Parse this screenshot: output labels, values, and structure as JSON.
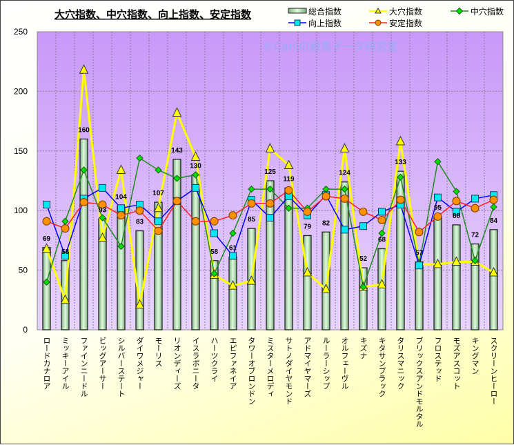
{
  "chart_data": {
    "type": "bar",
    "title": "大穴指数、中穴指数、向上指数、安定指数",
    "watermark": "©Caniの競馬データ研究室",
    "ylim": [
      0,
      250
    ],
    "yticks": [
      0,
      50,
      100,
      150,
      200,
      250
    ],
    "grid": true,
    "legend_position": "top-right",
    "categories": [
      "ロードカナロア",
      "ミッキーアイル",
      "ファインニードル",
      "ビッグアーサー",
      "シルバーステート",
      "ダイワメジャー",
      "モーリス",
      "リオンディーズ",
      "イスラボニータ",
      "ハーツクライ",
      "エピファネイア",
      "タワーオブロンドン",
      "ミスターメロディ",
      "サトノダイヤモンド",
      "アドマイヤマーズ",
      "ルーラーシップ",
      "オルフェーヴル",
      "キズナ",
      "キタサンブラック",
      "タリスマニック",
      "ブリックスアンドモルタル",
      "フロステッド",
      "モズアスコット",
      "キングマン",
      "スクリーンヒーロー"
    ],
    "series": [
      {
        "name": "総合指数",
        "kind": "bar",
        "color": "#c8f0c8",
        "values": [
          69,
          58,
          160,
          93,
          104,
          83,
          107,
          143,
          130,
          58,
          61,
          85,
          125,
          119,
          79,
          82,
          124,
          52,
          68,
          133,
          57,
          95,
          88,
          72,
          84
        ]
      },
      {
        "name": "大穴指数",
        "kind": "line",
        "marker": "triangle",
        "color": "#ffff00",
        "values": [
          68,
          25,
          218,
          77,
          134,
          21,
          102,
          182,
          145,
          46,
          37,
          41,
          152,
          138,
          48,
          34,
          152,
          36,
          38,
          158,
          55,
          55,
          57,
          57,
          48
        ]
      },
      {
        "name": "中穴指数",
        "kind": "line",
        "marker": "diamond",
        "color": "#1e8c1e",
        "fill": "#00e000",
        "values": [
          40,
          91,
          134,
          94,
          70,
          144,
          134,
          127,
          130,
          47,
          81,
          118,
          118,
          102,
          102,
          118,
          118,
          36,
          81,
          128,
          55,
          141,
          116,
          58,
          103
        ]
      },
      {
        "name": "向上指数",
        "kind": "line",
        "marker": "square",
        "color": "#0000ff",
        "fill": "#00e8f0",
        "values": [
          105,
          62,
          110,
          119,
          102,
          105,
          91,
          108,
          119,
          81,
          62,
          109,
          94,
          112,
          96,
          113,
          84,
          87,
          99,
          105,
          54,
          111,
          99,
          110,
          113
        ]
      },
      {
        "name": "安定指数",
        "kind": "line",
        "marker": "circle",
        "color": "#ff2020",
        "fill": "#ff9000",
        "values": [
          91,
          85,
          107,
          105,
          96,
          100,
          83,
          108,
          91,
          91,
          96,
          106,
          106,
          117,
          99,
          112,
          110,
          99,
          92,
          109,
          82,
          95,
          108,
          102,
          109
        ]
      }
    ]
  }
}
